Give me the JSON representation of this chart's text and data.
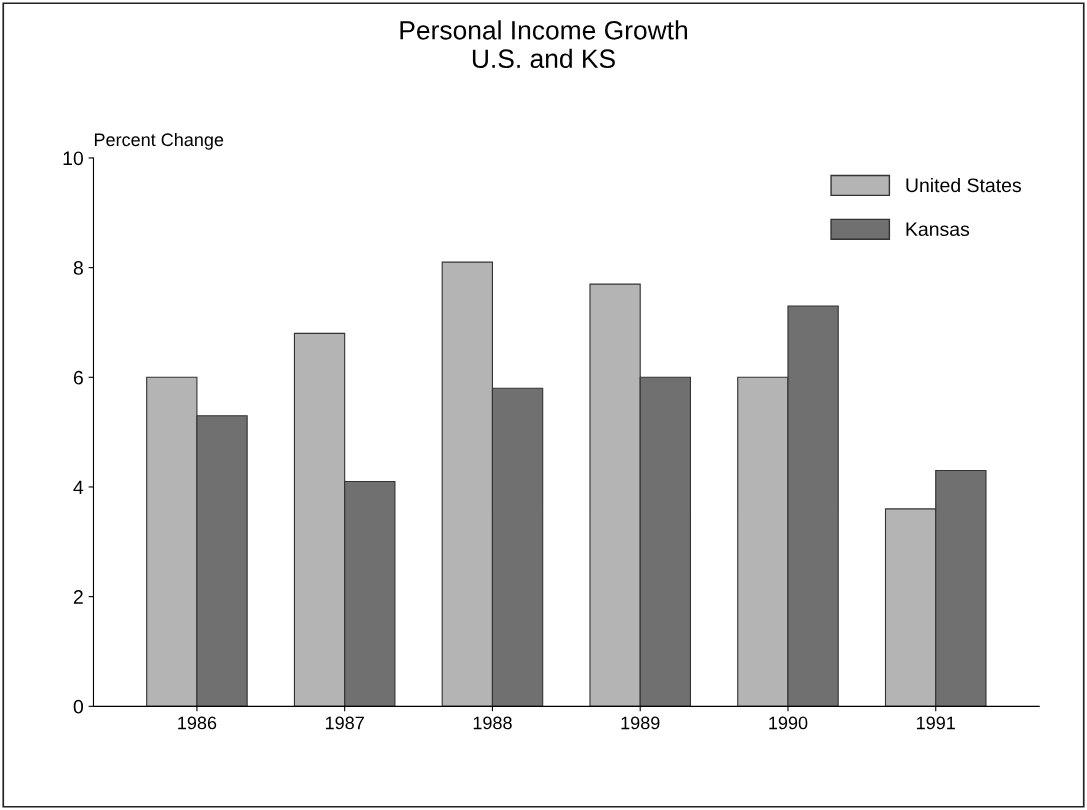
{
  "chart_data": {
    "type": "bar",
    "title": "Personal Income Growth\nU.S. and KS",
    "ylabel": "Percent Change",
    "categories": [
      "1986",
      "1987",
      "1988",
      "1989",
      "1990",
      "1991"
    ],
    "series": [
      {
        "name": "United States",
        "color": "#b4b4b4",
        "values": [
          6.0,
          6.8,
          8.1,
          7.7,
          6.0,
          3.6
        ]
      },
      {
        "name": "Kansas",
        "color": "#707070",
        "values": [
          5.3,
          4.1,
          5.8,
          6.0,
          7.3,
          4.3
        ]
      }
    ],
    "ylim": [
      0,
      10
    ],
    "yticks": [
      0,
      2,
      4,
      6,
      8,
      10
    ],
    "grid": false,
    "legend": "top right"
  }
}
